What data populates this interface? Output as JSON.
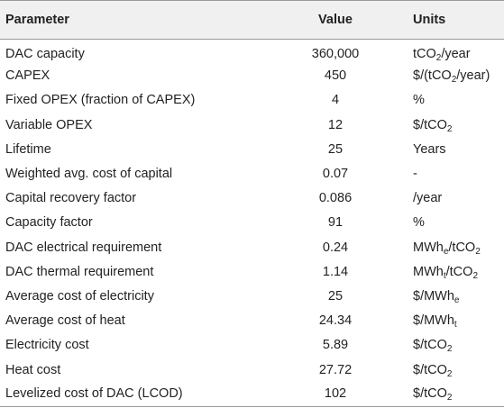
{
  "table": {
    "headers": [
      "Parameter",
      "Value",
      "Units"
    ],
    "rows": [
      {
        "parameter": "DAC capacity",
        "value": "360,000",
        "units": [
          {
            "t": "tCO"
          },
          {
            "sub": "2"
          },
          {
            "t": "/year"
          }
        ]
      },
      {
        "parameter": "CAPEX",
        "value": "450",
        "units": [
          {
            "t": "$/(tCO"
          },
          {
            "sub": "2"
          },
          {
            "t": "/year)"
          }
        ]
      },
      {
        "parameter": "Fixed OPEX (fraction of CAPEX)",
        "value": "4",
        "units": [
          {
            "t": "%"
          }
        ]
      },
      {
        "parameter": "Variable OPEX",
        "value": "12",
        "units": [
          {
            "t": "$/tCO"
          },
          {
            "sub": "2"
          }
        ]
      },
      {
        "parameter": "Lifetime",
        "value": "25",
        "units": [
          {
            "t": "Years"
          }
        ]
      },
      {
        "parameter": "Weighted avg. cost of capital",
        "value": "0.07",
        "units": [
          {
            "t": "-"
          }
        ]
      },
      {
        "parameter": "Capital recovery factor",
        "value": "0.086",
        "units": [
          {
            "t": "/year"
          }
        ]
      },
      {
        "parameter": "Capacity factor",
        "value": "91",
        "units": [
          {
            "t": "%"
          }
        ]
      },
      {
        "parameter": "DAC electrical requirement",
        "value": "0.24",
        "units": [
          {
            "t": "MWh"
          },
          {
            "sub": "e"
          },
          {
            "t": "/tCO"
          },
          {
            "sub": "2"
          }
        ]
      },
      {
        "parameter": "DAC thermal requirement",
        "value": "1.14",
        "units": [
          {
            "t": "MWh"
          },
          {
            "sub": "t"
          },
          {
            "t": "/tCO"
          },
          {
            "sub": "2"
          }
        ]
      },
      {
        "parameter": "Average cost of electricity",
        "value": "25",
        "units": [
          {
            "t": "$/MWh"
          },
          {
            "sub": "e"
          }
        ]
      },
      {
        "parameter": "Average cost of heat",
        "value": "24.34",
        "units": [
          {
            "t": "$/MWh"
          },
          {
            "sub": "t"
          }
        ]
      },
      {
        "parameter": "Electricity cost",
        "value": "5.89",
        "units": [
          {
            "t": "$/tCO"
          },
          {
            "sub": "2"
          }
        ]
      },
      {
        "parameter": "Heat cost",
        "value": "27.72",
        "units": [
          {
            "t": "$/tCO"
          },
          {
            "sub": "2"
          }
        ]
      },
      {
        "parameter": "Levelized cost of DAC (LCOD)",
        "value": "102",
        "units": [
          {
            "t": "$/tCO"
          },
          {
            "sub": "2"
          }
        ]
      }
    ]
  }
}
